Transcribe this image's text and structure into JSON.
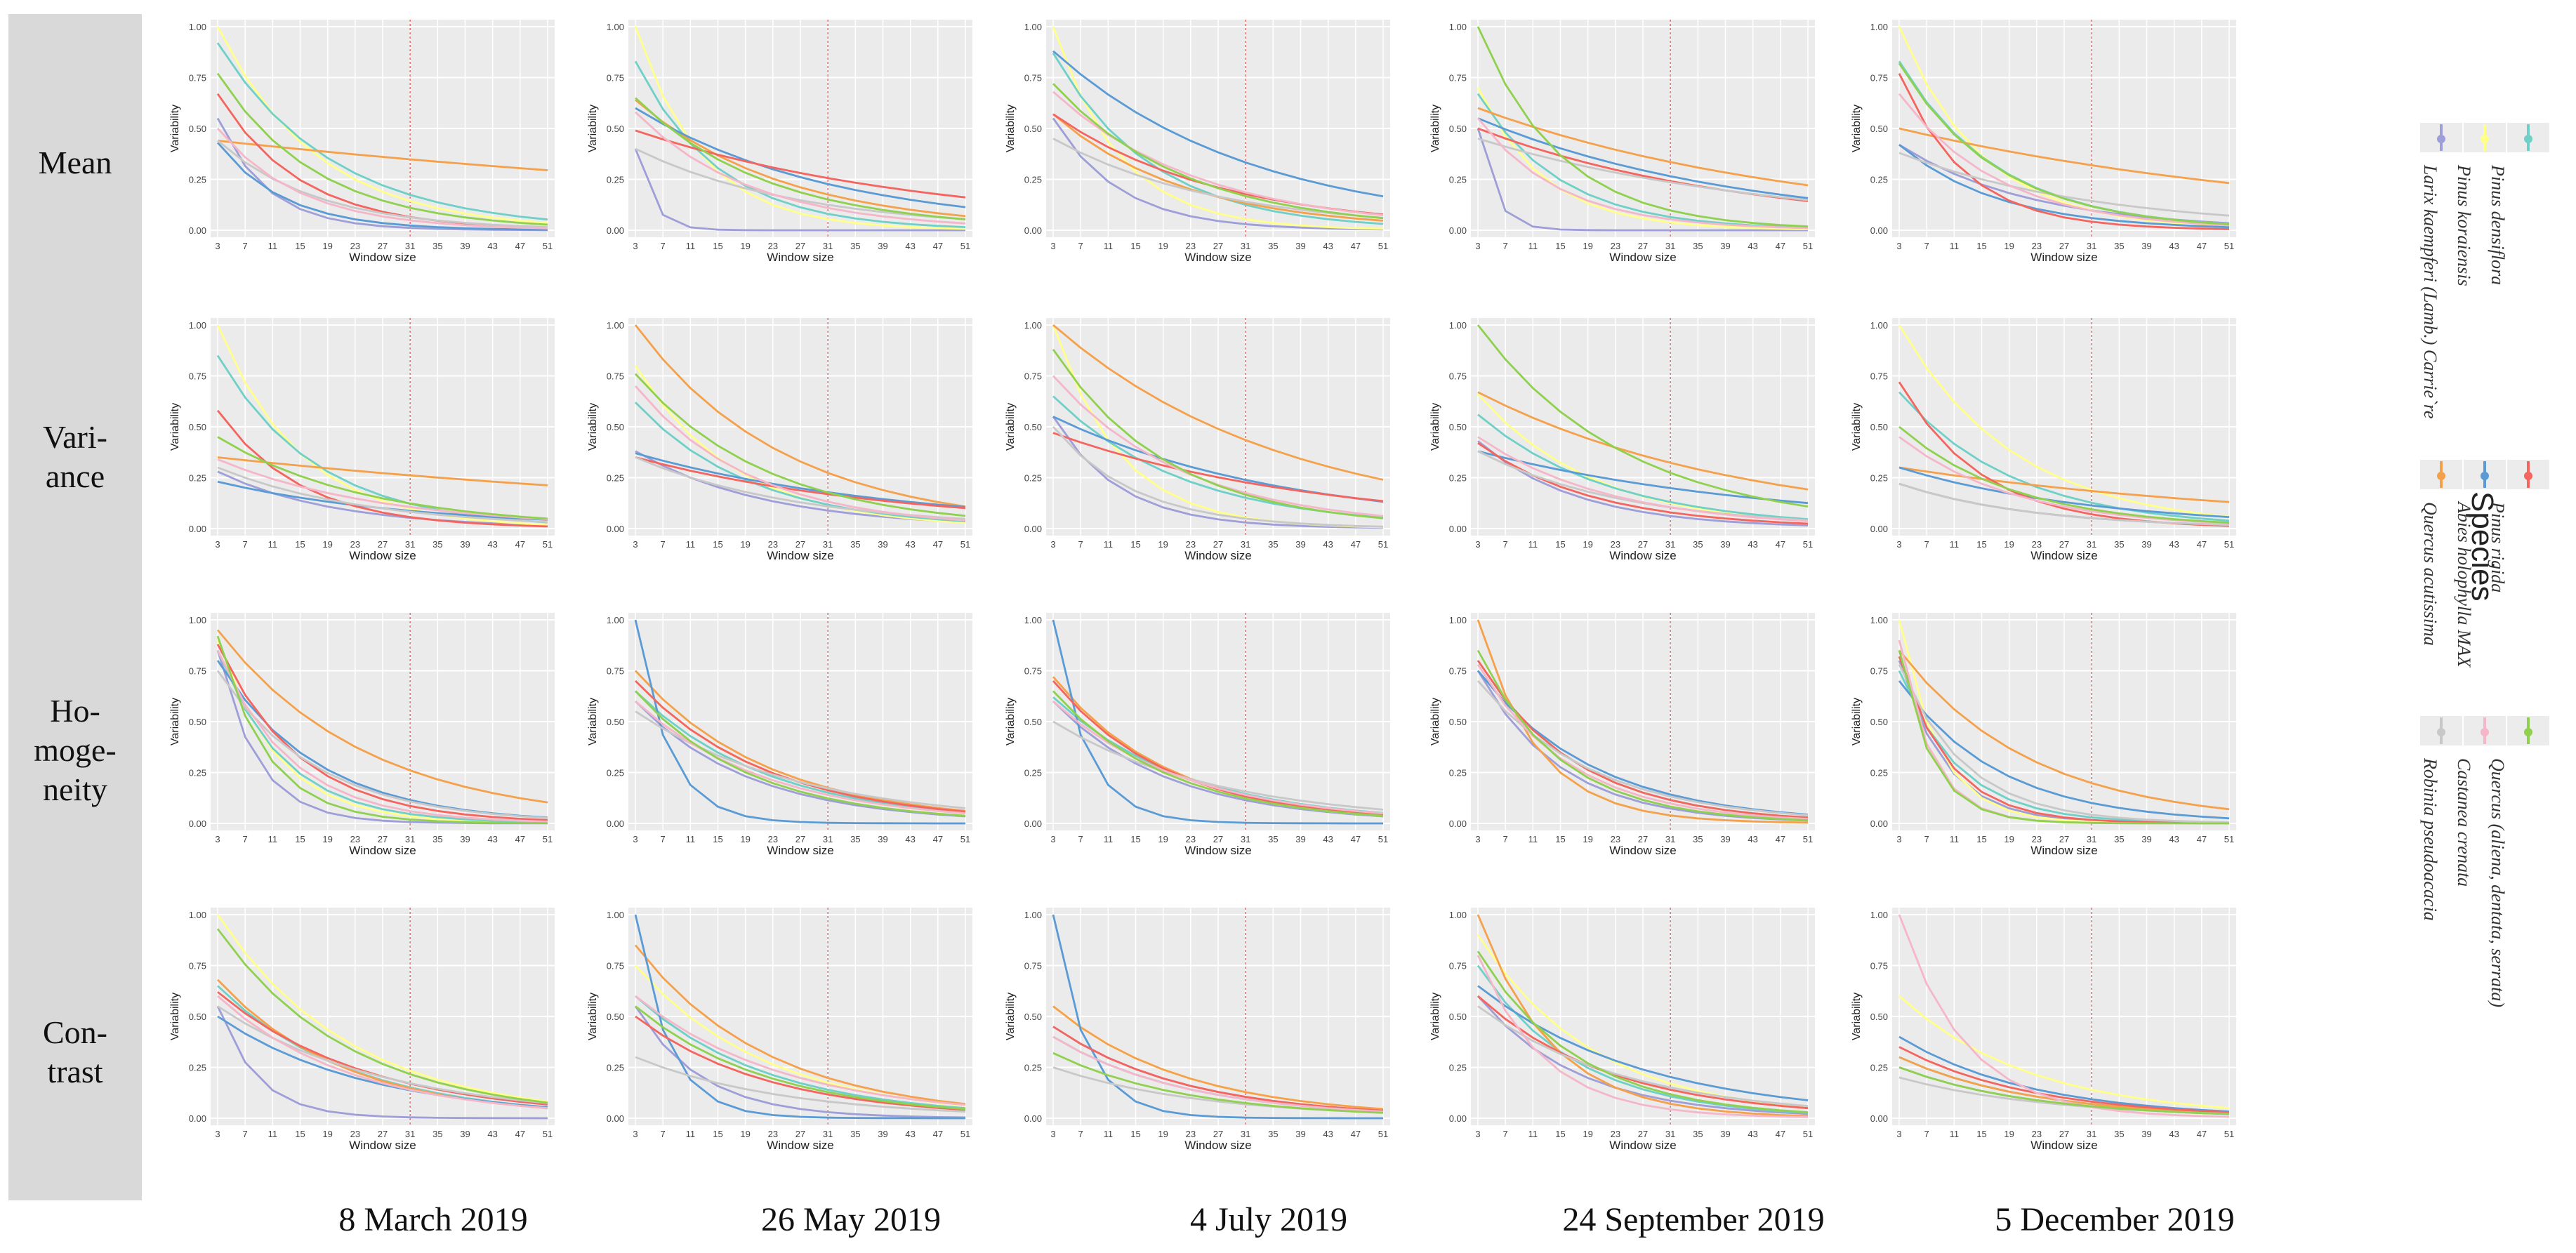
{
  "figure": {
    "row_labels": [
      {
        "lines": [
          "Mean"
        ]
      },
      {
        "lines": [
          "Vari-",
          "ance"
        ]
      },
      {
        "lines": [
          "Ho-",
          "moge-",
          "neity"
        ]
      },
      {
        "lines": [
          "Con-",
          "trast"
        ]
      }
    ],
    "column_labels": [
      "8 March 2019",
      "26 May 2019",
      "4 July 2019",
      "24 September 2019",
      "5 December 2019"
    ]
  },
  "legend": {
    "title": "Species",
    "groups": [
      {
        "colors": [
          "#9e9ed8",
          "#ffff8a",
          "#6fd0c8"
        ],
        "labels": [
          "Pinus densiflora",
          "Pinus koraiensis",
          "Larix kaempferi (Lamb.) Carrie`re"
        ]
      },
      {
        "colors": [
          "#f5a04a",
          "#5b9bd5",
          "#f4655f"
        ],
        "labels": [
          "Pinus rigida",
          "Abies holophylla MAX",
          "Quercus acutissima"
        ]
      },
      {
        "colors": [
          "#c8c8c8",
          "#f4b6c8",
          "#8fd14f"
        ],
        "labels": [
          "Quercus (aliena, dentata, serrata)",
          "Castanea crenata",
          "Robinia pseudoacacia"
        ]
      }
    ]
  },
  "chart_data": {
    "type": "line",
    "x": [
      3,
      7,
      11,
      15,
      19,
      23,
      27,
      31,
      35,
      39,
      43,
      47,
      51
    ],
    "x_ticks": [
      "3",
      "7",
      "11",
      "15",
      "19",
      "23",
      "27",
      "31",
      "35",
      "39",
      "43",
      "47",
      "51"
    ],
    "xlabel": "Window size",
    "ylabel": "Variability",
    "y_ticks": [
      "0.00",
      "0.25",
      "0.50",
      "0.75",
      "1.00"
    ],
    "ylim": [
      0,
      1
    ],
    "reference_line_x": 31,
    "series_colors": [
      "#9e9ed8",
      "#ffff8a",
      "#6fd0c8",
      "#f5a04a",
      "#5b9bd5",
      "#f4655f",
      "#c8c8c8",
      "#f4b6c8",
      "#8fd14f"
    ],
    "panels": [
      [
        [
          [
            0.55,
            0.15
          ],
          [
            1.0,
            0.3
          ],
          [
            0.92,
            0.35
          ],
          [
            0.44,
            2.5
          ],
          [
            0.43,
            0.2
          ],
          [
            0.67,
            0.25
          ],
          [
            0.44,
            0.3
          ],
          [
            0.5,
            0.25
          ],
          [
            0.77,
            0.3
          ]
        ],
        [
          [
            0.4,
            0.05
          ],
          [
            1.0,
            0.2
          ],
          [
            0.83,
            0.25
          ],
          [
            0.64,
            0.45
          ],
          [
            0.6,
            0.6
          ],
          [
            0.49,
            0.9
          ],
          [
            0.4,
            0.5
          ],
          [
            0.58,
            0.35
          ],
          [
            0.65,
            0.4
          ]
        ],
        [
          [
            0.55,
            0.2
          ],
          [
            1.0,
            0.2
          ],
          [
            0.87,
            0.3
          ],
          [
            0.57,
            0.4
          ],
          [
            0.88,
            0.6
          ],
          [
            0.57,
            0.5
          ],
          [
            0.45,
            0.5
          ],
          [
            0.68,
            0.45
          ],
          [
            0.72,
            0.4
          ]
        ],
        [
          [
            0.5,
            0.05
          ],
          [
            0.7,
            0.2
          ],
          [
            0.67,
            0.25
          ],
          [
            0.6,
            1.0
          ],
          [
            0.55,
            0.8
          ],
          [
            0.5,
            0.8
          ],
          [
            0.45,
            0.9
          ],
          [
            0.55,
            0.25
          ],
          [
            1.0,
            0.25
          ]
        ],
        [
          [
            0.42,
            0.4
          ],
          [
            1.0,
            0.25
          ],
          [
            0.83,
            0.3
          ],
          [
            0.5,
            1.3
          ],
          [
            0.42,
            0.3
          ],
          [
            0.77,
            0.2
          ],
          [
            0.38,
            0.6
          ],
          [
            0.67,
            0.3
          ],
          [
            0.82,
            0.3
          ]
        ]
      ],
      [
        [
          [
            0.28,
            0.35
          ],
          [
            1.0,
            0.25
          ],
          [
            0.85,
            0.3
          ],
          [
            0.35,
            2.0
          ],
          [
            0.23,
            0.6
          ],
          [
            0.58,
            0.25
          ],
          [
            0.3,
            0.45
          ],
          [
            0.34,
            0.5
          ],
          [
            0.45,
            0.45
          ]
        ],
        [
          [
            0.38,
            0.4
          ],
          [
            0.8,
            0.3
          ],
          [
            0.62,
            0.35
          ],
          [
            1.0,
            0.45
          ],
          [
            0.37,
            0.8
          ],
          [
            0.35,
            0.8
          ],
          [
            0.35,
            0.5
          ],
          [
            0.7,
            0.35
          ],
          [
            0.76,
            0.4
          ]
        ],
        [
          [
            0.55,
            0.2
          ],
          [
            1.0,
            0.2
          ],
          [
            0.65,
            0.4
          ],
          [
            1.0,
            0.7
          ],
          [
            0.55,
            0.7
          ],
          [
            0.47,
            0.8
          ],
          [
            0.5,
            0.25
          ],
          [
            0.75,
            0.4
          ],
          [
            0.88,
            0.35
          ]
        ],
        [
          [
            0.43,
            0.3
          ],
          [
            0.66,
            0.35
          ],
          [
            0.56,
            0.4
          ],
          [
            0.67,
            0.8
          ],
          [
            0.38,
            0.9
          ],
          [
            0.42,
            0.35
          ],
          [
            0.38,
            0.45
          ],
          [
            0.45,
            0.4
          ],
          [
            1.0,
            0.45
          ]
        ],
        [
          [
            0.22,
            0.4
          ],
          [
            1.0,
            0.35
          ],
          [
            0.67,
            0.35
          ],
          [
            0.3,
            1.2
          ],
          [
            0.3,
            0.6
          ],
          [
            0.72,
            0.25
          ],
          [
            0.22,
            0.4
          ],
          [
            0.45,
            0.35
          ],
          [
            0.5,
            0.35
          ]
        ]
      ],
      [
        [
          [
            0.85,
            0.12
          ],
          [
            0.9,
            0.18
          ],
          [
            0.85,
            0.2
          ],
          [
            0.95,
            0.45
          ],
          [
            0.8,
            0.3
          ],
          [
            0.88,
            0.25
          ],
          [
            0.75,
            0.3
          ],
          [
            0.85,
            0.22
          ],
          [
            0.92,
            0.15
          ]
        ],
        [
          [
            0.6,
            0.35
          ],
          [
            0.7,
            0.4
          ],
          [
            0.65,
            0.4
          ],
          [
            0.75,
            0.4
          ],
          [
            1.0,
            0.1
          ],
          [
            0.7,
            0.4
          ],
          [
            0.55,
            0.5
          ],
          [
            0.6,
            0.4
          ],
          [
            0.65,
            0.35
          ]
        ],
        [
          [
            0.6,
            0.35
          ],
          [
            0.65,
            0.35
          ],
          [
            0.62,
            0.4
          ],
          [
            0.72,
            0.35
          ],
          [
            1.0,
            0.1
          ],
          [
            0.7,
            0.35
          ],
          [
            0.5,
            0.5
          ],
          [
            0.6,
            0.4
          ],
          [
            0.65,
            0.35
          ]
        ],
        [
          [
            0.75,
            0.25
          ],
          [
            0.8,
            0.3
          ],
          [
            0.8,
            0.3
          ],
          [
            1.0,
            0.18
          ],
          [
            0.75,
            0.35
          ],
          [
            0.8,
            0.3
          ],
          [
            0.7,
            0.35
          ],
          [
            0.78,
            0.28
          ],
          [
            0.85,
            0.25
          ]
        ],
        [
          [
            0.8,
            0.14
          ],
          [
            1.0,
            0.12
          ],
          [
            0.75,
            0.18
          ],
          [
            0.85,
            0.4
          ],
          [
            0.7,
            0.3
          ],
          [
            0.82,
            0.15
          ],
          [
            0.78,
            0.2
          ],
          [
            0.9,
            0.1
          ],
          [
            0.85,
            0.1
          ]
        ]
      ],
      [
        [
          [
            0.55,
            0.12
          ],
          [
            1.0,
            0.4
          ],
          [
            0.65,
            0.4
          ],
          [
            0.68,
            0.38
          ],
          [
            0.5,
            0.45
          ],
          [
            0.62,
            0.45
          ],
          [
            0.55,
            0.5
          ],
          [
            0.6,
            0.4
          ],
          [
            0.93,
            0.4
          ]
        ],
        [
          [
            0.55,
            0.2
          ],
          [
            0.75,
            0.4
          ],
          [
            0.6,
            0.4
          ],
          [
            0.85,
            0.4
          ],
          [
            1.0,
            0.1
          ],
          [
            0.5,
            0.4
          ],
          [
            0.3,
            0.45
          ],
          [
            0.6,
            0.45
          ],
          [
            0.55,
            0.4
          ]
        ],
        [
          [
            0.45,
            0.4
          ],
          [
            0.55,
            0.4
          ],
          [
            0.4,
            0.4
          ],
          [
            0.55,
            0.4
          ],
          [
            1.0,
            0.1
          ],
          [
            0.45,
            0.4
          ],
          [
            0.25,
            0.45
          ],
          [
            0.4,
            0.4
          ],
          [
            0.32,
            0.4
          ]
        ],
        [
          [
            0.6,
            0.3
          ],
          [
            0.9,
            0.35
          ],
          [
            0.75,
            0.3
          ],
          [
            1.0,
            0.22
          ],
          [
            0.65,
            0.5
          ],
          [
            0.6,
            0.4
          ],
          [
            0.55,
            0.45
          ],
          [
            0.8,
            0.2
          ],
          [
            0.82,
            0.3
          ]
        ],
        [
          [
            0.25,
            0.4
          ],
          [
            0.6,
            0.4
          ],
          [
            0.3,
            0.4
          ],
          [
            0.3,
            0.4
          ],
          [
            0.4,
            0.4
          ],
          [
            0.35,
            0.4
          ],
          [
            0.2,
            0.45
          ],
          [
            1.0,
            0.2
          ],
          [
            0.25,
            0.4
          ]
        ]
      ]
    ]
  }
}
